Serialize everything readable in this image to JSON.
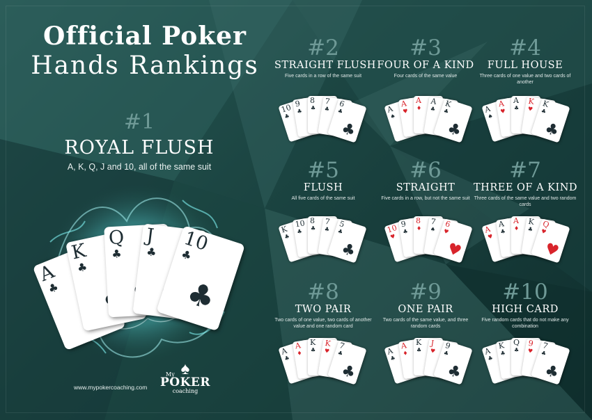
{
  "title": {
    "line1": "Official Poker",
    "line2": "Hands Rankings"
  },
  "main_hand": {
    "number": "#1",
    "name": "ROYAL FLUSH",
    "description": "A, K, Q, J and 10, all of the same suit",
    "cards": [
      {
        "rank": "A",
        "suit": "♣",
        "color": "black"
      },
      {
        "rank": "K",
        "suit": "♣",
        "color": "black"
      },
      {
        "rank": "Q",
        "suit": "♣",
        "color": "black"
      },
      {
        "rank": "J",
        "suit": "♣",
        "color": "black"
      },
      {
        "rank": "10",
        "suit": "♣",
        "color": "black"
      }
    ]
  },
  "hands": [
    {
      "number": "#2",
      "name": "STRAIGHT FLUSH",
      "description": "Five cards in a row of the same suit",
      "cards": [
        {
          "rank": "10",
          "suit": "♣",
          "color": "black"
        },
        {
          "rank": "9",
          "suit": "♣",
          "color": "black"
        },
        {
          "rank": "8",
          "suit": "♣",
          "color": "black"
        },
        {
          "rank": "7",
          "suit": "♣",
          "color": "black"
        },
        {
          "rank": "6",
          "suit": "♣",
          "color": "black"
        }
      ]
    },
    {
      "number": "#3",
      "name": "FOUR OF A KIND",
      "description": "Four cards of the same value",
      "cards": [
        {
          "rank": "A",
          "suit": "♠",
          "color": "black"
        },
        {
          "rank": "A",
          "suit": "♥",
          "color": "red"
        },
        {
          "rank": "A",
          "suit": "♦",
          "color": "red"
        },
        {
          "rank": "A",
          "suit": "♣",
          "color": "black"
        },
        {
          "rank": "K",
          "suit": "♣",
          "color": "black"
        }
      ]
    },
    {
      "number": "#4",
      "name": "FULL HOUSE",
      "description": "Three cards of one value and two cards of another",
      "cards": [
        {
          "rank": "A",
          "suit": "♠",
          "color": "black"
        },
        {
          "rank": "A",
          "suit": "♥",
          "color": "red"
        },
        {
          "rank": "A",
          "suit": "♣",
          "color": "black"
        },
        {
          "rank": "K",
          "suit": "♥",
          "color": "red"
        },
        {
          "rank": "K",
          "suit": "♣",
          "color": "black"
        }
      ]
    },
    {
      "number": "#5",
      "name": "FLUSH",
      "description": "All five cards of the same suit",
      "cards": [
        {
          "rank": "K",
          "suit": "♣",
          "color": "black"
        },
        {
          "rank": "10",
          "suit": "♣",
          "color": "black"
        },
        {
          "rank": "8",
          "suit": "♣",
          "color": "black"
        },
        {
          "rank": "7",
          "suit": "♣",
          "color": "black"
        },
        {
          "rank": "5",
          "suit": "♣",
          "color": "black"
        }
      ]
    },
    {
      "number": "#6",
      "name": "STRAIGHT",
      "description": "Five cards in a row, but not the same suit",
      "cards": [
        {
          "rank": "10",
          "suit": "♥",
          "color": "red"
        },
        {
          "rank": "9",
          "suit": "♣",
          "color": "black"
        },
        {
          "rank": "8",
          "suit": "♦",
          "color": "red"
        },
        {
          "rank": "7",
          "suit": "♠",
          "color": "black"
        },
        {
          "rank": "6",
          "suit": "♥",
          "color": "red"
        }
      ]
    },
    {
      "number": "#7",
      "name": "THREE OF A KIND",
      "description": "Three cards of the same value and two random cards",
      "cards": [
        {
          "rank": "A",
          "suit": "♥",
          "color": "red"
        },
        {
          "rank": "A",
          "suit": "♣",
          "color": "black"
        },
        {
          "rank": "A",
          "suit": "♦",
          "color": "red"
        },
        {
          "rank": "K",
          "suit": "♣",
          "color": "black"
        },
        {
          "rank": "Q",
          "suit": "♥",
          "color": "red"
        }
      ]
    },
    {
      "number": "#8",
      "name": "TWO PAIR",
      "description": "Two cards of one value, two cards of another value and one random card",
      "cards": [
        {
          "rank": "A",
          "suit": "♣",
          "color": "black"
        },
        {
          "rank": "A",
          "suit": "♦",
          "color": "red"
        },
        {
          "rank": "K",
          "suit": "♣",
          "color": "black"
        },
        {
          "rank": "K",
          "suit": "♥",
          "color": "red"
        },
        {
          "rank": "7",
          "suit": "♣",
          "color": "black"
        }
      ]
    },
    {
      "number": "#9",
      "name": "ONE PAIR",
      "description": "Two cards of the same value, and three random cards",
      "cards": [
        {
          "rank": "A",
          "suit": "♣",
          "color": "black"
        },
        {
          "rank": "A",
          "suit": "♦",
          "color": "red"
        },
        {
          "rank": "K",
          "suit": "♣",
          "color": "black"
        },
        {
          "rank": "J",
          "suit": "♥",
          "color": "red"
        },
        {
          "rank": "9",
          "suit": "♣",
          "color": "black"
        }
      ]
    },
    {
      "number": "#10",
      "name": "HIGH CARD",
      "description": "Five random cards that do not make any combination",
      "cards": [
        {
          "rank": "A",
          "suit": "♣",
          "color": "black"
        },
        {
          "rank": "K",
          "suit": "♣",
          "color": "black"
        },
        {
          "rank": "Q",
          "suit": "♣",
          "color": "black"
        },
        {
          "rank": "9",
          "suit": "♥",
          "color": "red"
        },
        {
          "rank": "7",
          "suit": "♣",
          "color": "black"
        }
      ]
    }
  ],
  "footer": {
    "website": "www.mypokercoaching.com",
    "logo": {
      "my": "My",
      "poker": "POKER",
      "coaching": "coaching",
      "icon": "spade-icon"
    }
  },
  "colors": {
    "background": "#1c4643",
    "accent": "#6f9a97",
    "red_suit": "#d8242b",
    "black_suit": "#1e2d33",
    "smoke": "#5fe3e6"
  }
}
